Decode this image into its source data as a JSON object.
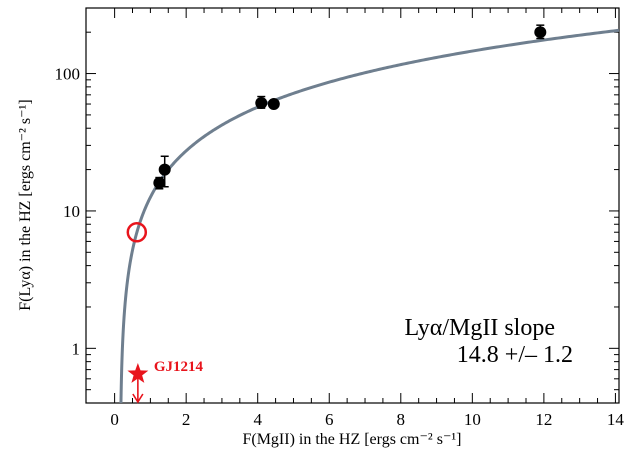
{
  "chart_data": {
    "type": "scatter",
    "xlabel": "F(MgII) in the HZ [ergs cm⁻² s⁻¹]",
    "ylabel": "F(Lyα) in the HZ [ergs cm⁻² s⁻¹]",
    "xlim": [
      -0.8,
      14.1
    ],
    "ylim": [
      0.4,
      300
    ],
    "yscale": "log",
    "x_ticks": [
      "0",
      "2",
      "4",
      "6",
      "8",
      "10",
      "12",
      "14"
    ],
    "y_ticks": [
      "1",
      "10",
      "100"
    ],
    "points": [
      {
        "x": 1.25,
        "y": 16,
        "yerr_low": 14.5,
        "yerr_high": 17.5
      },
      {
        "x": 1.4,
        "y": 20,
        "yerr_low": 15,
        "yerr_high": 25
      },
      {
        "x": 4.1,
        "y": 61,
        "yerr_low": 56,
        "yerr_high": 68
      },
      {
        "x": 4.45,
        "y": 60,
        "yerr_low": 57,
        "yerr_high": 63
      },
      {
        "x": 11.9,
        "y": 200,
        "yerr_low": 180,
        "yerr_high": 225
      }
    ],
    "predicted_point": {
      "x": 0.62,
      "y": 7.0
    },
    "upper_limit": {
      "label": "GJ1214",
      "x": 0.65,
      "y": 0.65
    },
    "fit": {
      "slope": 14.8,
      "slope_err": 1.2,
      "x_intercept": 0.15
    },
    "annotation_line1": "Lyα/MgII slope",
    "annotation_line2": "14.8 +/– 1.2",
    "colors": {
      "fit": "#6f7f8f",
      "highlight": "#e8141c",
      "points": "#000000"
    },
    "grid": false,
    "legend": "none"
  }
}
